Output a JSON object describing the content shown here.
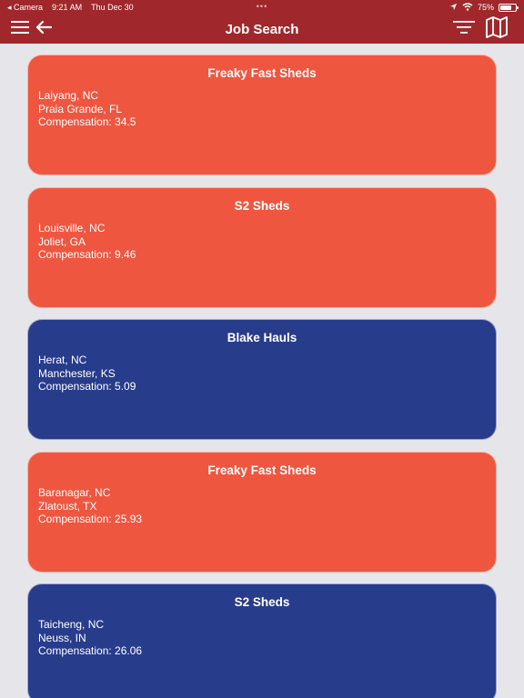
{
  "status_bar": {
    "back_app": "Camera",
    "time": "9:21 AM",
    "date": "Thu Dec 30",
    "battery_text": "75%",
    "battery_level": 0.75,
    "dots": "•••"
  },
  "nav": {
    "title": "Job Search",
    "icons": [
      "menu-icon",
      "back-arrow-icon",
      "filter-icon",
      "map-icon"
    ]
  },
  "colors": {
    "bar": "#a0282c",
    "card_orange": "#ef5640",
    "card_blue": "#283c8c",
    "background": "#e6e6ea"
  },
  "jobs": [
    {
      "company": "Freaky Fast Sheds",
      "origin": "Laiyang, NC",
      "destination": "Praia Grande, FL",
      "compensation": "Compensation: 34.5",
      "color": "orange"
    },
    {
      "company": "S2 Sheds",
      "origin": "Louisville, NC",
      "destination": "Joliet, GA",
      "compensation": "Compensation: 9.46",
      "color": "orange"
    },
    {
      "company": "Blake Hauls",
      "origin": "Herat, NC",
      "destination": "Manchester, KS",
      "compensation": "Compensation: 5.09",
      "color": "blue"
    },
    {
      "company": "Freaky Fast Sheds",
      "origin": "Baranagar, NC",
      "destination": "Zlatoust, TX",
      "compensation": "Compensation: 25.93",
      "color": "orange"
    },
    {
      "company": "S2 Sheds",
      "origin": "Taicheng, NC",
      "destination": "Neuss, IN",
      "compensation": "Compensation: 26.06",
      "color": "blue"
    }
  ]
}
